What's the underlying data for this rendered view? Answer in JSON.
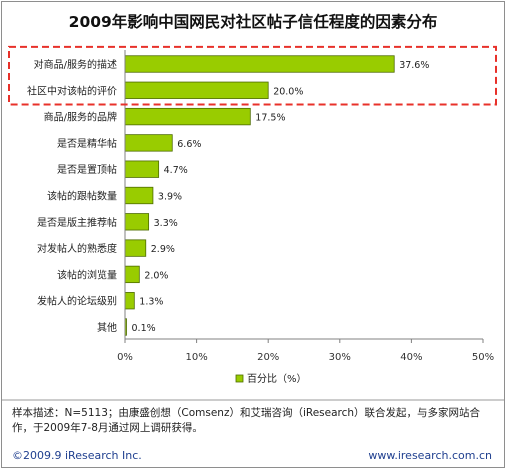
{
  "chart_data": {
    "type": "bar",
    "orientation": "horizontal",
    "title": "2009年影响中国网民对社区帖子信任程度的因素分布",
    "categories": [
      "对商品/服务的描述",
      "社区中对该帖的评价",
      "商品/服务的品牌",
      "是否是精华帖",
      "是否是置顶帖",
      "该帖的跟帖数量",
      "是否是版主推荐帖",
      "对发帖人的熟悉度",
      "该帖的浏览量",
      "发帖人的论坛级别",
      "其他"
    ],
    "series": [
      {
        "name": "百分比（%）",
        "values": [
          37.6,
          20.0,
          17.5,
          6.6,
          4.7,
          3.9,
          3.3,
          2.9,
          2.0,
          1.3,
          0.1
        ]
      }
    ],
    "value_labels": [
      "37.6%",
      "20.0%",
      "17.5%",
      "6.6%",
      "4.7%",
      "3.9%",
      "3.3%",
      "2.9%",
      "2.0%",
      "1.3%",
      "0.1%"
    ],
    "xlim": [
      0,
      50
    ],
    "xticks": [
      "0%",
      "10%",
      "20%",
      "30%",
      "40%",
      "50%"
    ],
    "highlighted_categories": [
      "对商品/服务的描述",
      "社区中对该帖的评价"
    ],
    "legend_position": "bottom",
    "grid": false,
    "colors": {
      "bar_fill": "#99cc00",
      "bar_stroke": "#4d6b00",
      "highlight": "#e8312a",
      "axis": "#808080"
    }
  },
  "note": "样本描述：N=5113；由康盛创想（Comsenz）和艾瑞咨询（iResearch）联合发起，与多家网站合作，于2009年7-8月通过网上调研获得。",
  "footer": {
    "copyright": "©2009.9 iResearch Inc.",
    "website": "www.iresearch.com.cn"
  }
}
